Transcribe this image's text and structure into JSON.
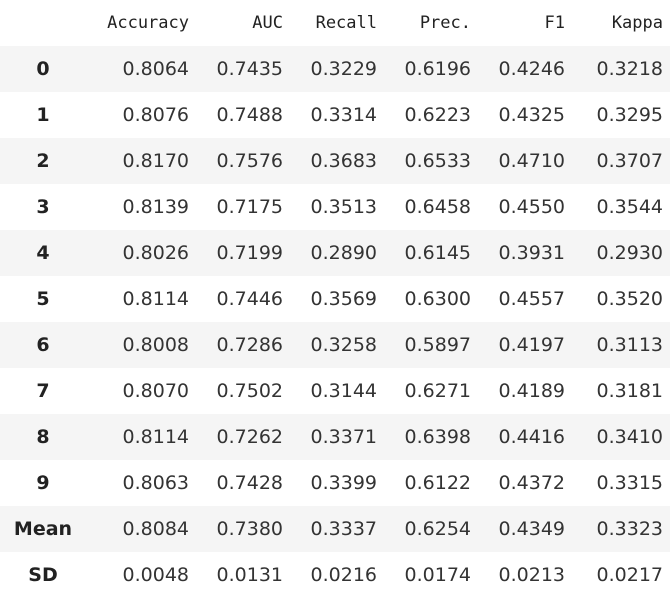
{
  "table": {
    "columns": [
      "Accuracy",
      "AUC",
      "Recall",
      "Prec.",
      "F1",
      "Kappa"
    ],
    "index": [
      "0",
      "1",
      "2",
      "3",
      "4",
      "5",
      "6",
      "7",
      "8",
      "9",
      "Mean",
      "SD"
    ],
    "rows": [
      [
        "0.8064",
        "0.7435",
        "0.3229",
        "0.6196",
        "0.4246",
        "0.3218"
      ],
      [
        "0.8076",
        "0.7488",
        "0.3314",
        "0.6223",
        "0.4325",
        "0.3295"
      ],
      [
        "0.8170",
        "0.7576",
        "0.3683",
        "0.6533",
        "0.4710",
        "0.3707"
      ],
      [
        "0.8139",
        "0.7175",
        "0.3513",
        "0.6458",
        "0.4550",
        "0.3544"
      ],
      [
        "0.8026",
        "0.7199",
        "0.2890",
        "0.6145",
        "0.3931",
        "0.2930"
      ],
      [
        "0.8114",
        "0.7446",
        "0.3569",
        "0.6300",
        "0.4557",
        "0.3520"
      ],
      [
        "0.8008",
        "0.7286",
        "0.3258",
        "0.5897",
        "0.4197",
        "0.3113"
      ],
      [
        "0.8070",
        "0.7502",
        "0.3144",
        "0.6271",
        "0.4189",
        "0.3181"
      ],
      [
        "0.8114",
        "0.7262",
        "0.3371",
        "0.6398",
        "0.4416",
        "0.3410"
      ],
      [
        "0.8063",
        "0.7428",
        "0.3399",
        "0.6122",
        "0.4372",
        "0.3315"
      ],
      [
        "0.8084",
        "0.7380",
        "0.3337",
        "0.6254",
        "0.4349",
        "0.3323"
      ],
      [
        "0.0048",
        "0.0131",
        "0.0216",
        "0.0174",
        "0.0213",
        "0.0217"
      ]
    ]
  }
}
